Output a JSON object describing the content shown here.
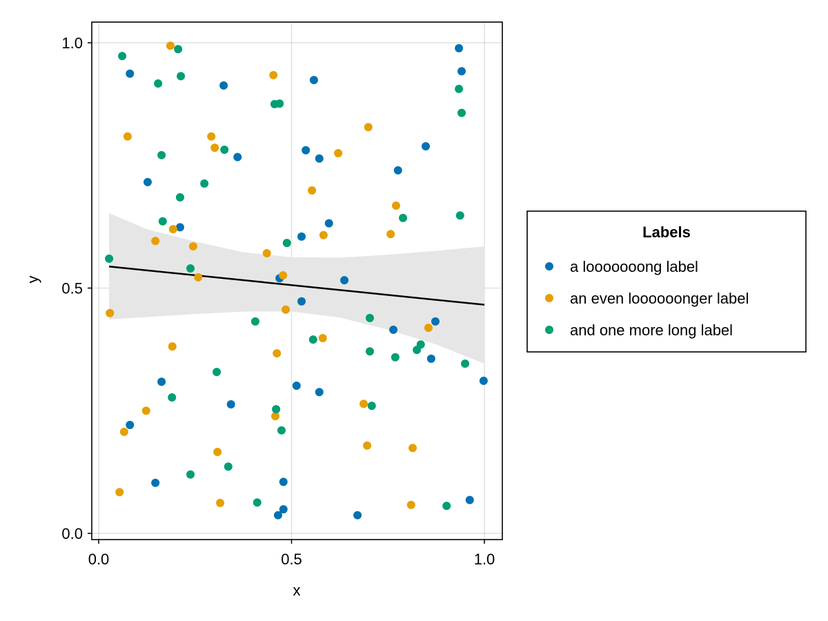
{
  "chart_data": {
    "type": "scatter",
    "title": "",
    "xlabel": "x",
    "ylabel": "y",
    "xlim": [
      0,
      1
    ],
    "ylim": [
      0,
      1
    ],
    "grid": true,
    "xticks": [
      0.0,
      0.5,
      1.0
    ],
    "xtick_labels": [
      "0.0",
      "0.5",
      "1.0"
    ],
    "yticks": [
      0.0,
      0.5,
      1.0
    ],
    "ytick_labels": [
      "0.0",
      "0.5",
      "1.0"
    ],
    "legend": {
      "title": "Labels",
      "placement": "right"
    },
    "series": [
      {
        "name": "a looooooong label",
        "color": "#0072B2",
        "points": [
          [
            0.081,
            0.937
          ],
          [
            0.324,
            0.913
          ],
          [
            0.558,
            0.924
          ],
          [
            0.934,
            0.989
          ],
          [
            0.941,
            0.942
          ],
          [
            0.537,
            0.781
          ],
          [
            0.572,
            0.764
          ],
          [
            0.36,
            0.767
          ],
          [
            0.127,
            0.716
          ],
          [
            0.211,
            0.624
          ],
          [
            0.597,
            0.632
          ],
          [
            0.526,
            0.605
          ],
          [
            0.469,
            0.52
          ],
          [
            0.637,
            0.516
          ],
          [
            0.526,
            0.473
          ],
          [
            0.776,
            0.74
          ],
          [
            0.848,
            0.789
          ],
          [
            0.873,
            0.432
          ],
          [
            0.764,
            0.415
          ],
          [
            0.862,
            0.356
          ],
          [
            0.163,
            0.309
          ],
          [
            0.513,
            0.301
          ],
          [
            0.572,
            0.288
          ],
          [
            0.343,
            0.263
          ],
          [
            0.081,
            0.221
          ],
          [
            0.998,
            0.311
          ],
          [
            0.147,
            0.103
          ],
          [
            0.479,
            0.105
          ],
          [
            0.465,
            0.037
          ],
          [
            0.479,
            0.049
          ],
          [
            0.671,
            0.037
          ],
          [
            0.962,
            0.068
          ]
        ]
      },
      {
        "name": "an even loooooonger label",
        "color": "#E69F00",
        "points": [
          [
            0.186,
            0.994
          ],
          [
            0.453,
            0.934
          ],
          [
            0.075,
            0.809
          ],
          [
            0.292,
            0.809
          ],
          [
            0.301,
            0.786
          ],
          [
            0.699,
            0.828
          ],
          [
            0.621,
            0.775
          ],
          [
            0.553,
            0.699
          ],
          [
            0.771,
            0.668
          ],
          [
            0.147,
            0.596
          ],
          [
            0.193,
            0.62
          ],
          [
            0.245,
            0.585
          ],
          [
            0.583,
            0.608
          ],
          [
            0.757,
            0.61
          ],
          [
            0.436,
            0.571
          ],
          [
            0.258,
            0.522
          ],
          [
            0.478,
            0.526
          ],
          [
            0.029,
            0.449
          ],
          [
            0.485,
            0.456
          ],
          [
            0.855,
            0.419
          ],
          [
            0.581,
            0.398
          ],
          [
            0.191,
            0.381
          ],
          [
            0.462,
            0.367
          ],
          [
            0.123,
            0.25
          ],
          [
            0.066,
            0.207
          ],
          [
            0.308,
            0.166
          ],
          [
            0.687,
            0.264
          ],
          [
            0.458,
            0.239
          ],
          [
            0.696,
            0.179
          ],
          [
            0.814,
            0.174
          ],
          [
            0.054,
            0.084
          ],
          [
            0.315,
            0.062
          ],
          [
            0.81,
            0.058
          ]
        ]
      },
      {
        "name": "and one more long label",
        "color": "#009E73",
        "points": [
          [
            0.061,
            0.973
          ],
          [
            0.206,
            0.987
          ],
          [
            0.154,
            0.917
          ],
          [
            0.213,
            0.932
          ],
          [
            0.456,
            0.875
          ],
          [
            0.469,
            0.876
          ],
          [
            0.934,
            0.906
          ],
          [
            0.941,
            0.857
          ],
          [
            0.163,
            0.771
          ],
          [
            0.326,
            0.782
          ],
          [
            0.274,
            0.713
          ],
          [
            0.211,
            0.685
          ],
          [
            0.166,
            0.636
          ],
          [
            0.789,
            0.643
          ],
          [
            0.937,
            0.648
          ],
          [
            0.027,
            0.56
          ],
          [
            0.238,
            0.54
          ],
          [
            0.488,
            0.592
          ],
          [
            0.406,
            0.432
          ],
          [
            0.556,
            0.395
          ],
          [
            0.703,
            0.439
          ],
          [
            0.703,
            0.371
          ],
          [
            0.835,
            0.385
          ],
          [
            0.825,
            0.374
          ],
          [
            0.95,
            0.346
          ],
          [
            0.769,
            0.359
          ],
          [
            0.306,
            0.329
          ],
          [
            0.19,
            0.277
          ],
          [
            0.46,
            0.253
          ],
          [
            0.708,
            0.26
          ],
          [
            0.474,
            0.21
          ],
          [
            0.238,
            0.12
          ],
          [
            0.336,
            0.136
          ],
          [
            0.411,
            0.063
          ],
          [
            0.902,
            0.056
          ]
        ]
      }
    ],
    "regression": {
      "color": "#000000",
      "x": [
        0.027,
        1.0
      ],
      "y": [
        0.544,
        0.466
      ],
      "band_color": "#E6E6E6",
      "band_x": [
        0.027,
        0.125,
        0.25,
        0.375,
        0.5,
        0.625,
        0.75,
        0.875,
        1.0
      ],
      "band_upper": [
        0.653,
        0.62,
        0.595,
        0.573,
        0.563,
        0.562,
        0.568,
        0.576,
        0.585
      ],
      "band_lower": [
        0.436,
        0.441,
        0.447,
        0.452,
        0.452,
        0.44,
        0.415,
        0.385,
        0.346
      ]
    }
  }
}
